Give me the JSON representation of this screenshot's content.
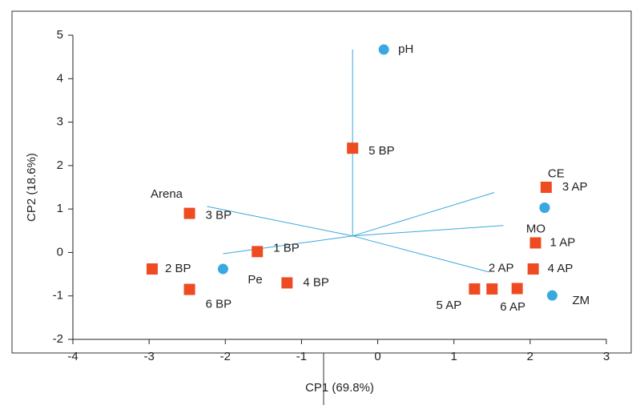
{
  "chart_data": {
    "type": "biplot",
    "x_label": "CP1 (69.8%)",
    "y_label": "CP2 (18.6%)",
    "xlim": [
      -4,
      3
    ],
    "ylim": [
      -2,
      5
    ],
    "xticks": [
      -4,
      -3,
      -2,
      -1,
      0,
      1,
      2,
      3
    ],
    "yticks": [
      -2,
      -1,
      0,
      1,
      2,
      3,
      4,
      5
    ],
    "series": [
      {
        "name": "sites",
        "color": "#ee4b22",
        "marker": "square",
        "labels": [
          "5 BP",
          "3 BP",
          "1 BP",
          "2 BP",
          "6 BP",
          "4 BP",
          "3 AP",
          "1 AP",
          "4 AP",
          "2 AP",
          "6 AP",
          "5 AP"
        ],
        "x": [
          -0.33,
          -2.47,
          -1.58,
          -2.96,
          -2.47,
          -1.19,
          2.21,
          2.07,
          2.04,
          1.83,
          1.5,
          1.27
        ],
        "values": [
          2.4,
          0.9,
          0.02,
          -0.38,
          -0.85,
          -0.7,
          1.5,
          0.22,
          -0.38,
          -0.83,
          -0.84,
          -0.84
        ]
      },
      {
        "name": "variables",
        "color": "#3aa8e0",
        "marker": "circle",
        "labels": [
          "pH",
          "CE",
          "MO",
          "ZM",
          "Pe"
        ],
        "x": [
          0.08,
          2.19,
          2.19,
          2.29,
          -2.03
        ],
        "values": [
          4.67,
          1.03,
          1.03,
          -0.99,
          -0.38
        ]
      }
    ],
    "vectors": {
      "color": "#3aa8e0",
      "origin": [
        -0.33,
        0.38
      ],
      "x": [
        -0.33,
        -2.24,
        -2.03,
        1.53,
        1.65,
        1.46
      ],
      "values": [
        4.67,
        1.06,
        -0.03,
        1.38,
        0.62,
        -0.45
      ]
    },
    "annotations": [
      "Arena"
    ]
  }
}
